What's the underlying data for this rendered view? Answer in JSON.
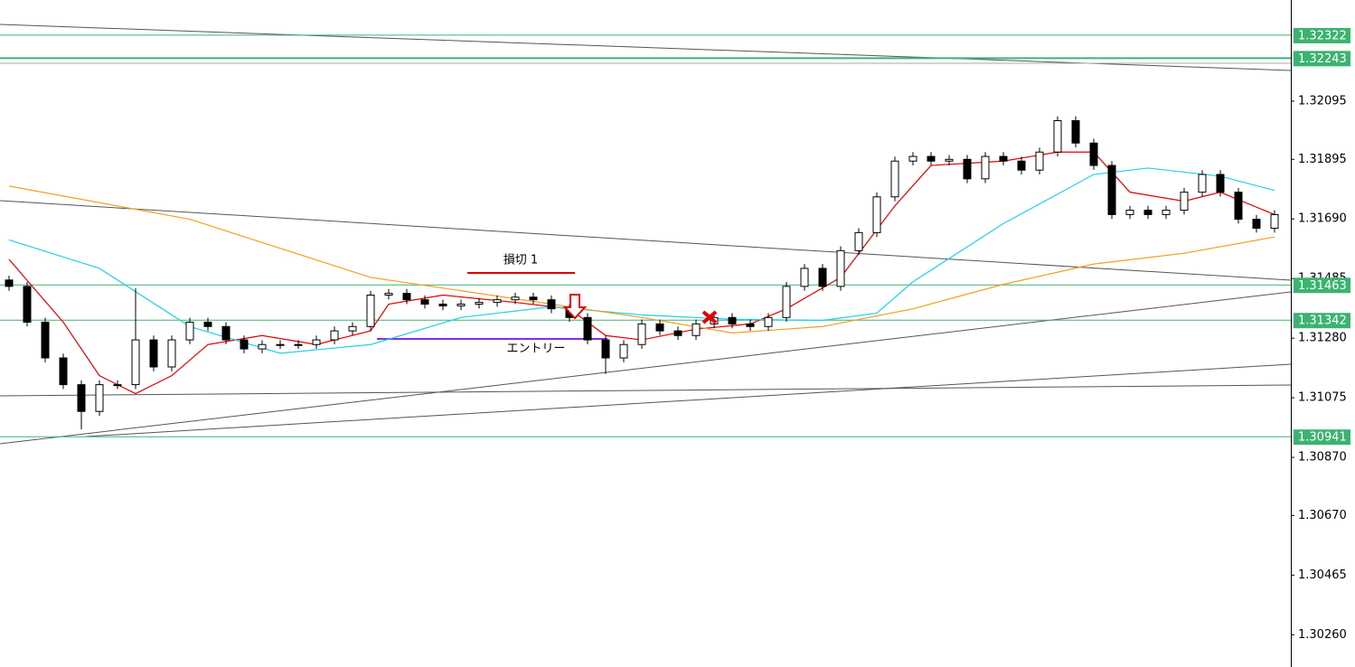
{
  "chart_data": {
    "type": "candlestick",
    "ylim": [
      1.30149,
      1.32443
    ],
    "yticks": [
      1.32095,
      1.31895,
      {
        "value": 1.3169,
        "label": "1.31690"
      },
      1.31485,
      {
        "value": 1.3128,
        "label": "1.31280"
      },
      1.31075,
      {
        "value": 1.3087,
        "label": "1.30870"
      },
      {
        "value": 1.3067,
        "label": "1.30670"
      },
      1.30465,
      {
        "value": 1.3026,
        "label": "1.30260"
      }
    ],
    "up_color": "#ffffff",
    "down_color": "#000000",
    "open": [
      1.3148,
      1.31458,
      1.31335,
      1.31212,
      1.3112,
      1.31028,
      1.3112,
      1.3112,
      1.31274,
      1.31181,
      1.31274,
      1.31335,
      1.3132,
      1.31274,
      1.31243,
      1.31258,
      1.31258,
      1.31258,
      1.31274,
      1.31305,
      1.3132,
      1.31428,
      1.31434,
      1.31412,
      1.31397,
      1.31391,
      1.31397,
      1.31403,
      1.31412,
      1.31421,
      1.31412,
      1.31381,
      1.31351,
      1.31274,
      1.31212,
      1.31258,
      1.31329,
      1.31305,
      1.31289,
      1.31329,
      1.31351,
      1.31329,
      1.3132,
      1.31351,
      1.31458,
      1.3152,
      1.31458,
      1.31581,
      1.31643,
      1.31766,
      1.31889,
      1.31905,
      1.31889,
      1.31895,
      1.31828,
      1.31905,
      1.31889,
      1.31858,
      1.3192,
      1.32028,
      1.31951,
      1.31874,
      1.31705,
      1.3172,
      1.31705,
      1.3172,
      1.31782,
      1.31843,
      1.31782,
      1.31689,
      1.31658
    ],
    "high": [
      1.31495,
      1.31473,
      1.3135,
      1.31227,
      1.31135,
      1.31135,
      1.31135,
      1.31452,
      1.31289,
      1.31289,
      1.3135,
      1.3135,
      1.31335,
      1.31289,
      1.31273,
      1.31273,
      1.31273,
      1.31289,
      1.3132,
      1.31335,
      1.31443,
      1.31449,
      1.31449,
      1.31427,
      1.31412,
      1.31412,
      1.31418,
      1.31427,
      1.31436,
      1.31436,
      1.31427,
      1.31396,
      1.31366,
      1.31289,
      1.31273,
      1.31344,
      1.31344,
      1.3132,
      1.31344,
      1.31366,
      1.31366,
      1.31344,
      1.31366,
      1.31473,
      1.31535,
      1.31535,
      1.31596,
      1.31658,
      1.31781,
      1.31904,
      1.3192,
      1.3192,
      1.3191,
      1.3191,
      1.3192,
      1.3192,
      1.31904,
      1.31935,
      1.32043,
      1.32043,
      1.31966,
      1.31889,
      1.31735,
      1.31735,
      1.31735,
      1.31797,
      1.31858,
      1.31858,
      1.31797,
      1.31704,
      1.3172
    ],
    "low": [
      1.31443,
      1.3132,
      1.31197,
      1.31105,
      1.30966,
      1.31013,
      1.31105,
      1.31105,
      1.31166,
      1.31166,
      1.31259,
      1.31305,
      1.31259,
      1.31228,
      1.31228,
      1.31243,
      1.31243,
      1.31243,
      1.31259,
      1.3129,
      1.31305,
      1.31413,
      1.31397,
      1.31382,
      1.31376,
      1.31376,
      1.31382,
      1.31388,
      1.31397,
      1.31397,
      1.31366,
      1.31336,
      1.31259,
      1.31157,
      1.31197,
      1.31243,
      1.3129,
      1.31274,
      1.31274,
      1.31314,
      1.31314,
      1.31305,
      1.31305,
      1.31336,
      1.31443,
      1.31443,
      1.31443,
      1.31566,
      1.31628,
      1.31751,
      1.31874,
      1.31874,
      1.31874,
      1.31813,
      1.31813,
      1.31874,
      1.31843,
      1.31843,
      1.31905,
      1.31936,
      1.31859,
      1.3169,
      1.3169,
      1.3169,
      1.3169,
      1.31705,
      1.31767,
      1.31767,
      1.31674,
      1.31643,
      1.31643
    ],
    "close": [
      1.31458,
      1.31335,
      1.31212,
      1.3112,
      1.31028,
      1.3112,
      1.3112,
      1.31274,
      1.31181,
      1.31274,
      1.31335,
      1.3132,
      1.31274,
      1.31243,
      1.31258,
      1.31258,
      1.31258,
      1.31274,
      1.31305,
      1.3132,
      1.31428,
      1.31434,
      1.31412,
      1.31397,
      1.31391,
      1.31397,
      1.31403,
      1.31412,
      1.31421,
      1.31412,
      1.31381,
      1.31351,
      1.31274,
      1.31212,
      1.31258,
      1.31329,
      1.31305,
      1.31289,
      1.31329,
      1.31351,
      1.31329,
      1.3132,
      1.31351,
      1.31458,
      1.3152,
      1.31458,
      1.31581,
      1.31643,
      1.31766,
      1.31889,
      1.31905,
      1.31889,
      1.31895,
      1.31828,
      1.31905,
      1.31889,
      1.31858,
      1.3192,
      1.32028,
      1.31951,
      1.31874,
      1.31705,
      1.3172,
      1.31705,
      1.3172,
      1.31782,
      1.31843,
      1.31782,
      1.31689,
      1.31658,
      1.31705
    ],
    "series": [
      {
        "color": "#e00000",
        "x": [
          0,
          3,
          5,
          7,
          9,
          11,
          14,
          17,
          20,
          21,
          24,
          28,
          31,
          33,
          35,
          38,
          41,
          43,
          46,
          49,
          51,
          55,
          58,
          60,
          62,
          65,
          67,
          70
        ],
        "values": [
          1.31551,
          1.31335,
          1.31151,
          1.31089,
          1.31151,
          1.31258,
          1.31289,
          1.31258,
          1.31305,
          1.31397,
          1.31428,
          1.31403,
          1.31381,
          1.31289,
          1.31274,
          1.31311,
          1.31329,
          1.31381,
          1.31489,
          1.31735,
          1.31874,
          1.31889,
          1.3192,
          1.3192,
          1.31782,
          1.31751,
          1.31782,
          1.31705
        ]
      },
      {
        "color": "#20d0e8",
        "x": [
          0,
          5,
          10,
          15,
          20,
          25,
          30,
          35,
          40,
          45,
          48,
          50,
          55,
          60,
          63,
          67,
          70
        ],
        "values": [
          1.31618,
          1.3152,
          1.3132,
          1.31228,
          1.31258,
          1.31351,
          1.31388,
          1.3136,
          1.31345,
          1.31341,
          1.31366,
          1.31474,
          1.31674,
          1.31843,
          1.31865,
          1.31837,
          1.31788
        ]
      },
      {
        "color": "#f0a020",
        "x": [
          0,
          10,
          20,
          30,
          35,
          40,
          45,
          50,
          55,
          60,
          65,
          70
        ],
        "values": [
          1.31803,
          1.31689,
          1.31489,
          1.31397,
          1.31351,
          1.31298,
          1.3132,
          1.31381,
          1.31465,
          1.31535,
          1.31572,
          1.31628
        ]
      }
    ],
    "levels": [
      1.32322,
      1.32243,
      1.31463,
      1.31342,
      1.30941
    ],
    "level_color": "#3cb371",
    "annotations": [
      "損切 1",
      "エントリー"
    ]
  }
}
